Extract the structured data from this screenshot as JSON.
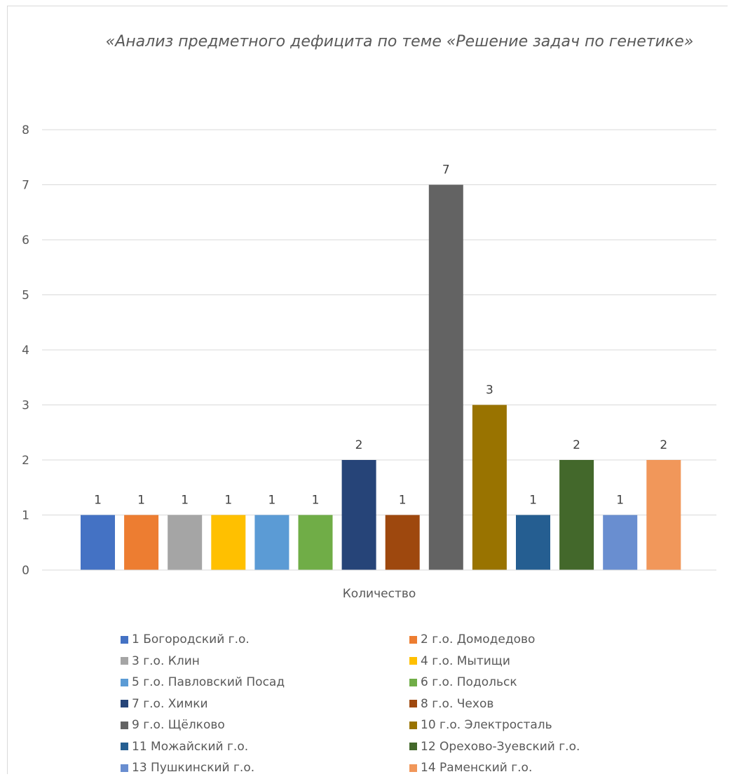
{
  "chart_data": {
    "type": "bar",
    "title": "«Анализ предметного дефицита по теме «Решение задач по генетике»",
    "xlabel": "",
    "ylabel": "",
    "categories": [
      "Количество"
    ],
    "category_label": "Количество",
    "ylim": [
      0,
      8
    ],
    "yticks": [
      "0",
      "1",
      "2",
      "3",
      "4",
      "5",
      "6",
      "7",
      "8"
    ],
    "grid": true,
    "legend_position": "bottom",
    "series": [
      {
        "name": "1 Богородский г.о.",
        "values": [
          1
        ],
        "color": "#4472c4"
      },
      {
        "name": "2 г.о. Домодедово",
        "values": [
          1
        ],
        "color": "#ed7d31"
      },
      {
        "name": "3 г.о. Клин",
        "values": [
          1
        ],
        "color": "#a5a5a5"
      },
      {
        "name": "4 г.о. Мытищи",
        "values": [
          1
        ],
        "color": "#ffc000"
      },
      {
        "name": "5 г.о. Павловский Посад",
        "values": [
          1
        ],
        "color": "#5b9bd5"
      },
      {
        "name": "6 г.о. Подольск",
        "values": [
          1
        ],
        "color": "#70ad47"
      },
      {
        "name": "7 г.о. Химки",
        "values": [
          2
        ],
        "color": "#264478"
      },
      {
        "name": "8 г.о. Чехов",
        "values": [
          1
        ],
        "color": "#9e480e"
      },
      {
        "name": "9 г.о. Щёлково",
        "values": [
          7
        ],
        "color": "#636363"
      },
      {
        "name": "10 г.о. Электросталь",
        "values": [
          3
        ],
        "color": "#997300"
      },
      {
        "name": "11 Можайский г.о.",
        "values": [
          1
        ],
        "color": "#255e91"
      },
      {
        "name": "12 Орехово-Зуевский г.о.",
        "values": [
          2
        ],
        "color": "#43682b"
      },
      {
        "name": "13 Пушкинский г.о.",
        "values": [
          1
        ],
        "color": "#698ed0"
      },
      {
        "name": "14 Раменский г.о.",
        "values": [
          2
        ],
        "color": "#f1975a"
      }
    ]
  }
}
